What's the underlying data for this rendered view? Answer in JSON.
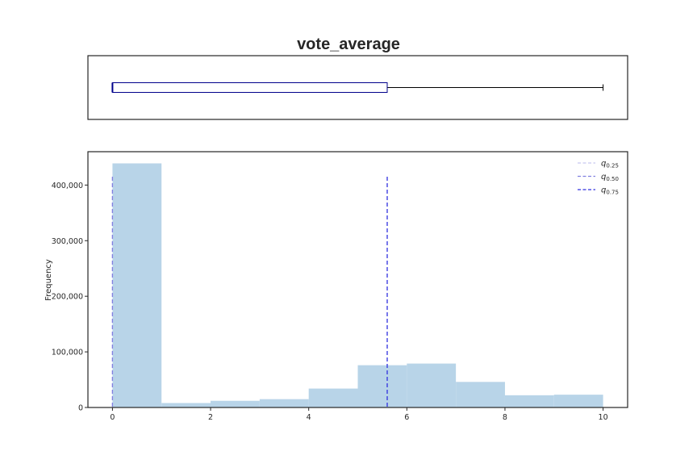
{
  "chart_data": {
    "type": "histogram_with_boxplot",
    "title": "vote_average",
    "boxplot": {
      "min": 0,
      "q1": 0,
      "median": 0,
      "q3": 5.6,
      "max": 10,
      "box_color": "#00008b",
      "whisker_color": "#000000"
    },
    "histogram": {
      "bin_edges": [
        0,
        1,
        2,
        3,
        4,
        5,
        6,
        7,
        8,
        9,
        10
      ],
      "values": [
        439000,
        8000,
        12000,
        15000,
        34000,
        76000,
        79000,
        46000,
        22000,
        23000
      ],
      "color": "#b8d4e8",
      "xlim": [
        -0.5,
        10.5
      ],
      "ylim": [
        0,
        460000
      ],
      "xticks": [
        0,
        2,
        4,
        6,
        8,
        10
      ],
      "xtick_labels": [
        "0",
        "2",
        "4",
        "6",
        "8",
        "10"
      ],
      "yticks": [
        0,
        100000,
        200000,
        300000,
        400000
      ],
      "ytick_labels": [
        "0",
        "100,000",
        "200,000",
        "300,000",
        "400,000"
      ],
      "ylabel": "Frequency",
      "xlabel": "",
      "grid": false
    },
    "quantile_lines": [
      {
        "label_base": "q",
        "label_sub": "0.25",
        "value": 0,
        "color": "#c8c8f0"
      },
      {
        "label_base": "q",
        "label_sub": "0.50",
        "value": 0,
        "color": "#8080e0"
      },
      {
        "label_base": "q",
        "label_sub": "0.75",
        "value": 5.6,
        "color": "#3030e0"
      }
    ],
    "legend_position": "top-right"
  }
}
